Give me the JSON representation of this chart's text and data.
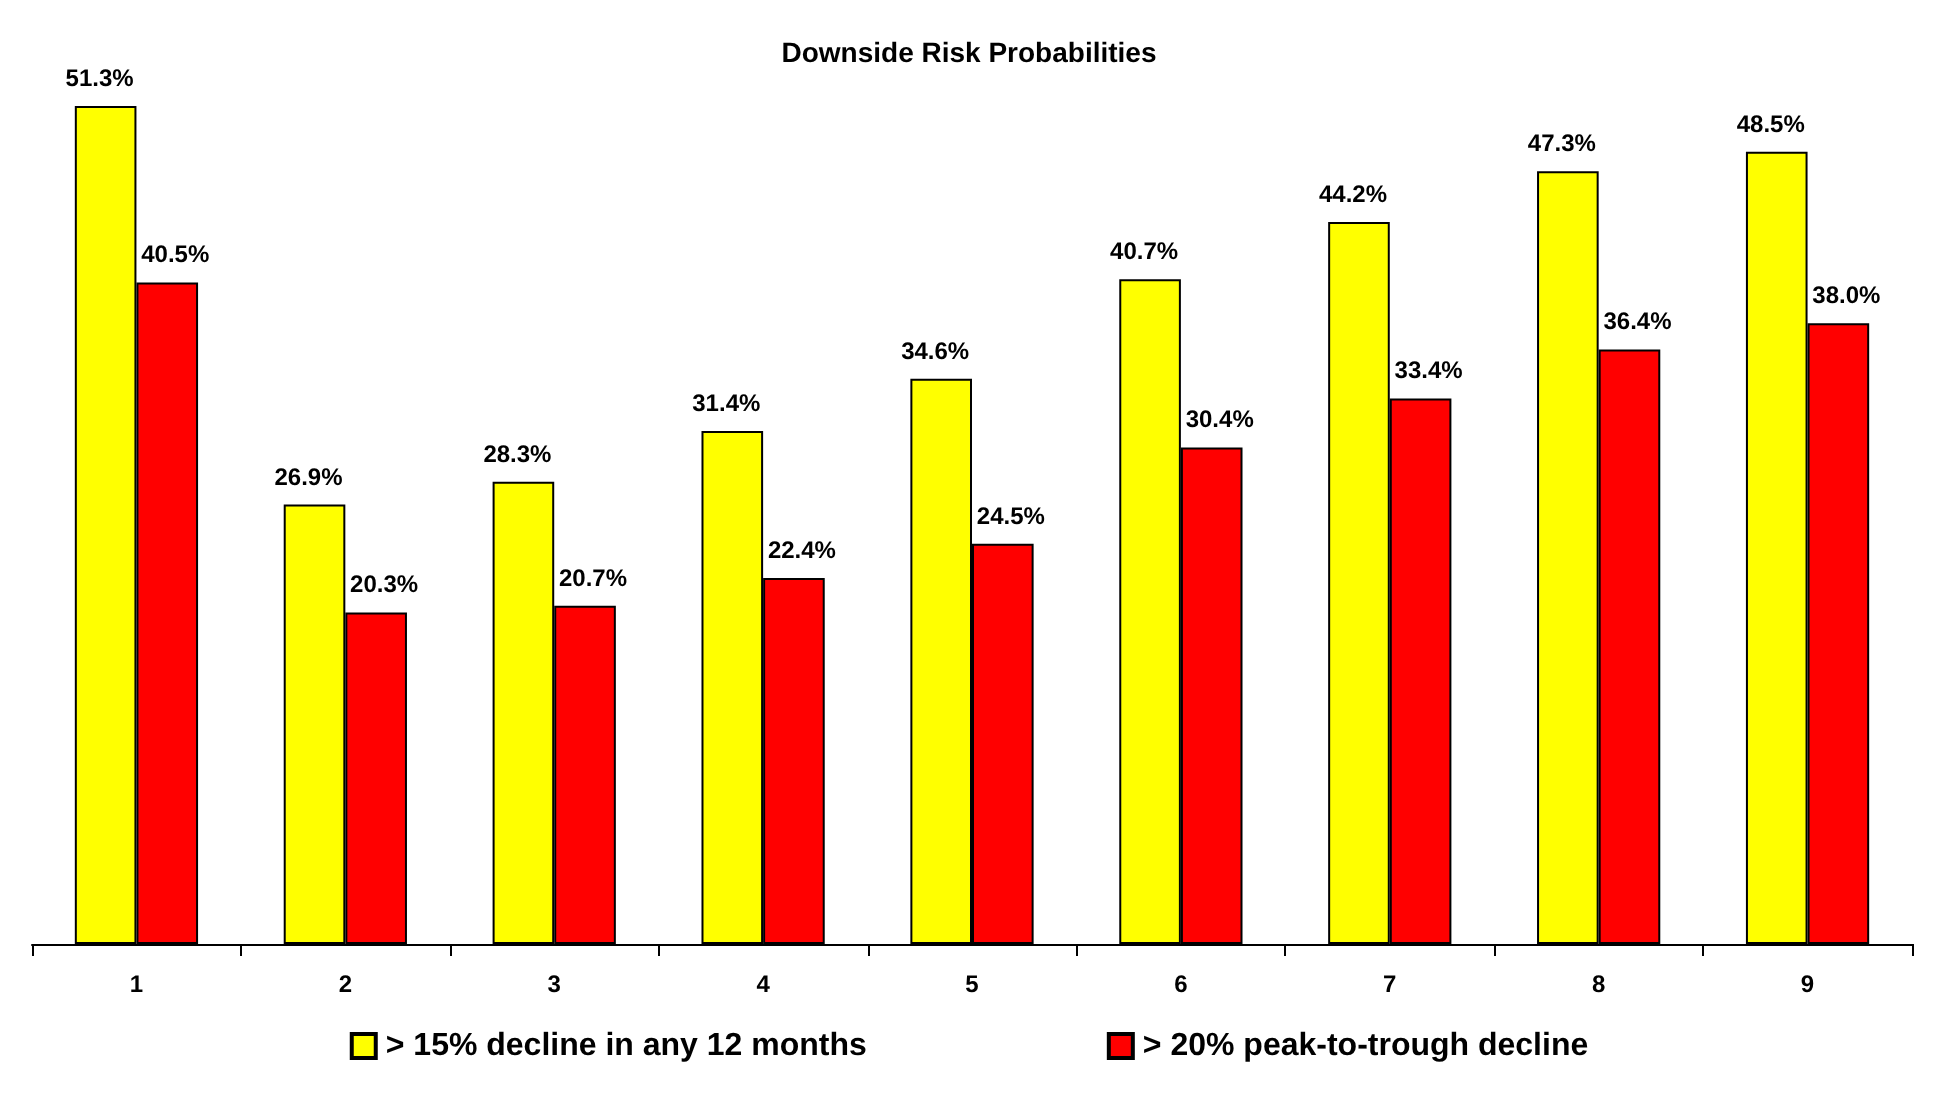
{
  "chart_data": {
    "type": "bar",
    "title": "Downside Risk Probabilities",
    "categories": [
      "1",
      "2",
      "3",
      "4",
      "5",
      "6",
      "7",
      "8",
      "9"
    ],
    "series": [
      {
        "name": "> 15% decline in any 12 months",
        "color": "#ffff00",
        "values": [
          51.3,
          26.9,
          28.3,
          31.4,
          34.6,
          40.7,
          44.2,
          47.3,
          48.5
        ],
        "value_labels": [
          "51.3%",
          "26.9%",
          "28.3%",
          "31.4%",
          "34.6%",
          "40.7%",
          "44.2%",
          "47.3%",
          "48.5%"
        ]
      },
      {
        "name": "> 20% peak-to-trough decline",
        "color": "#ff0000",
        "values": [
          40.5,
          20.3,
          20.7,
          22.4,
          24.5,
          30.4,
          33.4,
          36.4,
          38.0
        ],
        "value_labels": [
          "40.5%",
          "20.3%",
          "20.7%",
          "22.4%",
          "24.5%",
          "30.4%",
          "33.4%",
          "36.4%",
          "38.0%"
        ]
      }
    ],
    "legend": "bottom",
    "grid": false,
    "tick_labels": "x"
  }
}
